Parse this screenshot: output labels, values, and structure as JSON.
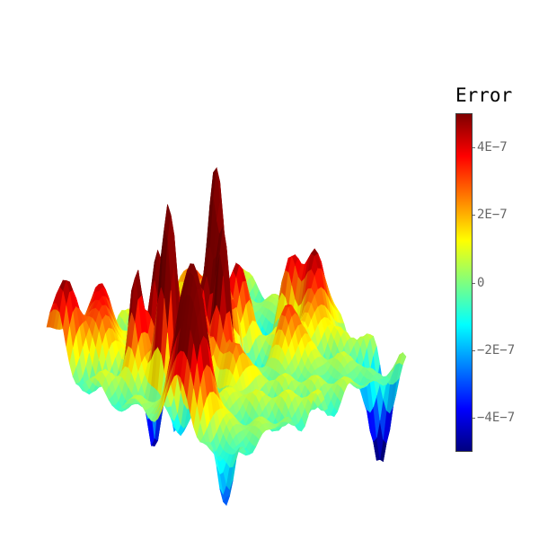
{
  "chart_data": {
    "type": "surface",
    "title": "",
    "colorbar": {
      "title": "Error",
      "range": [
        -5e-07,
        5e-07
      ],
      "colorscale": "Jet",
      "colors": [
        "#00007f",
        "#0000ff",
        "#007fff",
        "#00ffff",
        "#7fff7f",
        "#ffff00",
        "#ff7f00",
        "#ff0000",
        "#7f0000"
      ],
      "ticks": [
        {
          "value": 4e-07,
          "label": "4E−7"
        },
        {
          "value": 2e-07,
          "label": "2E−7"
        },
        {
          "value": 0,
          "label": "0"
        },
        {
          "value": -2e-07,
          "label": "−2E−7"
        },
        {
          "value": -4e-07,
          "label": "−4E−7"
        }
      ]
    },
    "axes_visible": false,
    "grid": false
  }
}
